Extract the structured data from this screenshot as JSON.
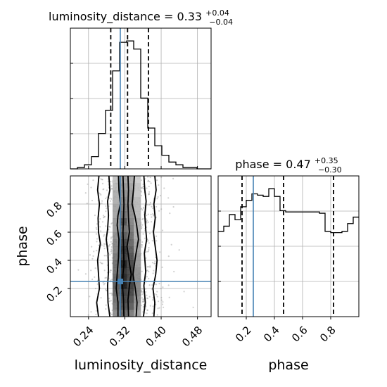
{
  "chart_data": {
    "type": "corner",
    "truth_color": "#4682b4",
    "parameters": [
      {
        "name": "luminosity_distance",
        "axis_label": "luminosity_distance",
        "title_prefix": "luminosity_distance = 0.33",
        "title_plus": "+0.04",
        "title_minus": "−0.04",
        "xlim": [
          0.2,
          0.51
        ],
        "ticks": [
          0.24,
          0.32,
          0.4,
          0.48
        ],
        "tick_labels": [
          "0.24",
          "0.32",
          "0.40",
          "0.48"
        ],
        "quantiles": [
          0.289,
          0.326,
          0.372
        ],
        "truth": 0.31,
        "hist_edges": [
          0.2,
          0.2155,
          0.231,
          0.2465,
          0.262,
          0.2775,
          0.293,
          0.3085,
          0.324,
          0.3395,
          0.355,
          0.3705,
          0.386,
          0.4015,
          0.417,
          0.4325,
          0.448,
          0.4635,
          0.479,
          0.4945,
          0.51
        ],
        "hist_counts": [
          0,
          1,
          3,
          9,
          26,
          43,
          72,
          93,
          94,
          88,
          52,
          30,
          17,
          10,
          5,
          3,
          1,
          1,
          0,
          0
        ]
      },
      {
        "name": "phase",
        "axis_label": "phase",
        "title_prefix": "phase = 0.47",
        "title_plus": "+0.35",
        "title_minus": "−0.30",
        "xlim": [
          0.0,
          1.0
        ],
        "ticks": [
          0.2,
          0.4,
          0.6,
          0.8
        ],
        "tick_labels": [
          "0.2",
          "0.4",
          "0.6",
          "0.8"
        ],
        "quantiles": [
          0.17,
          0.465,
          0.82
        ],
        "truth": 0.25,
        "hist_edges": [
          0.0,
          0.04,
          0.08,
          0.12,
          0.16,
          0.2,
          0.24,
          0.28,
          0.32,
          0.36,
          0.4,
          0.44,
          0.48,
          0.52,
          0.56,
          0.6,
          0.64,
          0.68,
          0.72,
          0.76,
          0.8,
          0.84,
          0.88,
          0.92,
          0.96,
          1.0
        ],
        "hist_counts": [
          66,
          70,
          79,
          75,
          85,
          90,
          95,
          94,
          93,
          99,
          93,
          82,
          81,
          81,
          81,
          81,
          81,
          81,
          80,
          66,
          65,
          65,
          66,
          72,
          77
        ]
      }
    ],
    "joint": {
      "x_param": "luminosity_distance",
      "y_param": "phase",
      "ylim": [
        0.0,
        1.0
      ],
      "yticks": [
        0.2,
        0.4,
        0.6,
        0.8
      ],
      "ytick_labels": [
        "0.2",
        "0.4",
        "0.6",
        "0.8"
      ],
      "truth": [
        0.31,
        0.25
      ],
      "grid_x_edges": [
        0.293,
        0.3085,
        0.324,
        0.3395,
        0.355
      ],
      "grid_y_edges": [
        0.0,
        0.05,
        0.1,
        0.15,
        0.2,
        0.25,
        0.3,
        0.35,
        0.4,
        0.45,
        0.5,
        0.55,
        0.6,
        0.65,
        0.7,
        0.75,
        0.8,
        0.85,
        0.9,
        0.95,
        1.0
      ],
      "density": [
        [
          0.45,
          0.65,
          0.55,
          0.35
        ],
        [
          0.55,
          0.75,
          0.7,
          0.4
        ],
        [
          0.6,
          0.8,
          0.75,
          0.45
        ],
        [
          0.65,
          0.85,
          0.8,
          0.5
        ],
        [
          0.7,
          1.0,
          0.85,
          0.5
        ],
        [
          0.65,
          0.95,
          0.8,
          0.45
        ],
        [
          0.6,
          0.9,
          0.8,
          0.45
        ],
        [
          0.6,
          1.0,
          0.8,
          0.4
        ],
        [
          0.55,
          0.85,
          0.75,
          0.4
        ],
        [
          0.5,
          0.9,
          0.7,
          0.35
        ],
        [
          0.5,
          0.8,
          0.65,
          0.35
        ],
        [
          0.45,
          0.7,
          0.6,
          0.3
        ],
        [
          0.4,
          0.6,
          0.55,
          0.3
        ],
        [
          0.4,
          0.75,
          0.5,
          0.3
        ],
        [
          0.35,
          0.6,
          0.45,
          0.25
        ],
        [
          0.35,
          0.55,
          0.45,
          0.25
        ],
        [
          0.3,
          0.5,
          0.4,
          0.25
        ],
        [
          0.3,
          0.45,
          0.4,
          0.2
        ],
        [
          0.25,
          0.4,
          0.35,
          0.2
        ],
        [
          0.2,
          0.35,
          0.3,
          0.15
        ]
      ],
      "contours": [
        {
          "level": 0.393,
          "left": [
            [
              0.318,
              0.0
            ],
            [
              0.317,
              0.12
            ],
            [
              0.315,
              0.22
            ],
            [
              0.316,
              0.3
            ],
            [
              0.318,
              0.38
            ],
            [
              0.317,
              0.5
            ],
            [
              0.316,
              0.6
            ],
            [
              0.317,
              0.7
            ],
            [
              0.318,
              0.8
            ],
            [
              0.317,
              0.9
            ],
            [
              0.316,
              1.0
            ]
          ],
          "right": [
            [
              0.328,
              0.0
            ],
            [
              0.327,
              0.12
            ],
            [
              0.33,
              0.22
            ],
            [
              0.334,
              0.3
            ],
            [
              0.33,
              0.38
            ],
            [
              0.325,
              0.5
            ],
            [
              0.33,
              0.6
            ],
            [
              0.328,
              0.7
            ],
            [
              0.327,
              0.8
            ],
            [
              0.328,
              0.9
            ],
            [
              0.327,
              1.0
            ]
          ]
        },
        {
          "level": 0.865,
          "left": [
            [
              0.305,
              0.0
            ],
            [
              0.305,
              0.1
            ],
            [
              0.301,
              0.2
            ],
            [
              0.303,
              0.3
            ],
            [
              0.306,
              0.42
            ],
            [
              0.307,
              0.55
            ],
            [
              0.303,
              0.65
            ],
            [
              0.305,
              0.72
            ],
            [
              0.31,
              0.8
            ],
            [
              0.307,
              0.9
            ],
            [
              0.306,
              1.0
            ]
          ],
          "right": [
            [
              0.345,
              0.0
            ],
            [
              0.347,
              0.1
            ],
            [
              0.343,
              0.2
            ],
            [
              0.338,
              0.3
            ],
            [
              0.343,
              0.42
            ],
            [
              0.35,
              0.55
            ],
            [
              0.346,
              0.65
            ],
            [
              0.342,
              0.72
            ],
            [
              0.336,
              0.8
            ],
            [
              0.339,
              0.9
            ],
            [
              0.341,
              1.0
            ]
          ]
        },
        {
          "level": 0.989,
          "left": [
            [
              0.287,
              0.0
            ],
            [
              0.283,
              0.1
            ],
            [
              0.282,
              0.22
            ],
            [
              0.284,
              0.32
            ],
            [
              0.283,
              0.45
            ],
            [
              0.279,
              0.55
            ],
            [
              0.282,
              0.62
            ],
            [
              0.284,
              0.72
            ],
            [
              0.282,
              0.82
            ],
            [
              0.287,
              0.9
            ],
            [
              0.285,
              1.0
            ]
          ],
          "right": [
            [
              0.361,
              0.0
            ],
            [
              0.365,
              0.1
            ],
            [
              0.362,
              0.22
            ],
            [
              0.366,
              0.32
            ],
            [
              0.363,
              0.45
            ],
            [
              0.368,
              0.55
            ],
            [
              0.366,
              0.62
            ],
            [
              0.364,
              0.72
            ],
            [
              0.367,
              0.82
            ],
            [
              0.364,
              0.9
            ],
            [
              0.362,
              1.0
            ]
          ]
        },
        {
          "level": 0.9989,
          "left": [
            [
              0.262,
              0.0
            ],
            [
              0.258,
              0.1
            ],
            [
              0.264,
              0.2
            ],
            [
              0.262,
              0.3
            ],
            [
              0.26,
              0.4
            ],
            [
              0.266,
              0.52
            ],
            [
              0.262,
              0.6
            ],
            [
              0.261,
              0.7
            ],
            [
              0.264,
              0.8
            ],
            [
              0.26,
              0.9
            ],
            [
              0.263,
              1.0
            ]
          ],
          "right": [
            [
              0.384,
              0.0
            ],
            [
              0.386,
              0.1
            ],
            [
              0.382,
              0.2
            ],
            [
              0.388,
              0.3
            ],
            [
              0.391,
              0.4
            ],
            [
              0.386,
              0.52
            ],
            [
              0.383,
              0.6
            ],
            [
              0.387,
              0.7
            ],
            [
              0.384,
              0.8
            ],
            [
              0.389,
              0.9
            ],
            [
              0.386,
              1.0
            ]
          ]
        }
      ]
    }
  }
}
